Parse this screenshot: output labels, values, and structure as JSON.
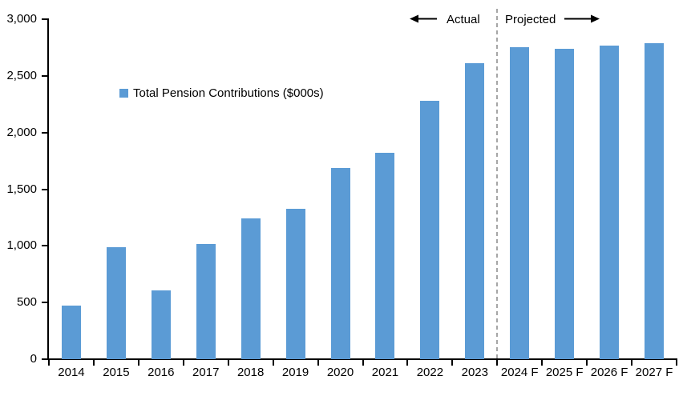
{
  "chart_data": {
    "type": "bar",
    "title": "",
    "legend": "Total Pension Contributions ($000s)",
    "categories": [
      "2014",
      "2015",
      "2016",
      "2017",
      "2018",
      "2019",
      "2020",
      "2021",
      "2022",
      "2023",
      "2024 F",
      "2025 F",
      "2026 F",
      "2027 F"
    ],
    "values": [
      470,
      990,
      610,
      1020,
      1240,
      1330,
      1690,
      1820,
      2280,
      2610,
      2750,
      2740,
      2770,
      2790
    ],
    "xlabel": "",
    "ylabel": "",
    "ylim": [
      0,
      3000
    ],
    "ytick_interval": 500,
    "ytick_labels": [
      "0",
      "500",
      "1,000",
      "1,500",
      "2,000",
      "2,500",
      "3,000"
    ],
    "grid": false,
    "legend_position": "upper-left-inside",
    "annotations": {
      "actual_label": "Actual",
      "projected_label": "Projected",
      "divider_after_category": "2023"
    },
    "colors": {
      "bar": "#5B9BD5",
      "axis": "#000000",
      "divider": "#A6A6A6",
      "text": "#000000",
      "background": "#FFFFFF"
    }
  }
}
